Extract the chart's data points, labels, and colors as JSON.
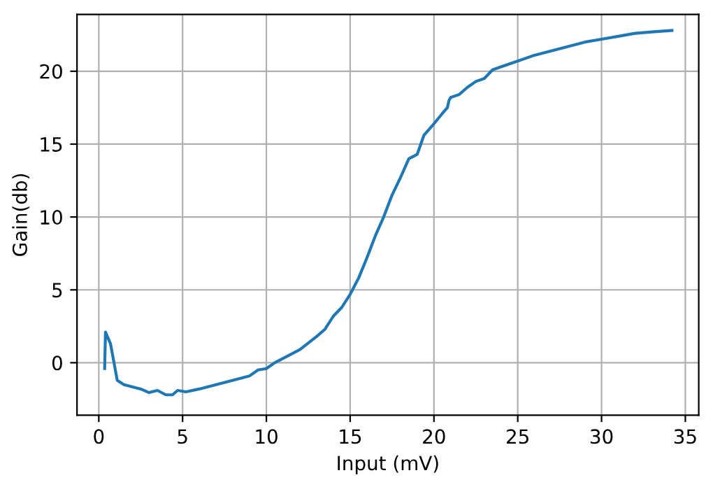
{
  "chart_data": {
    "type": "line",
    "xlabel": "Input (mV)",
    "ylabel": "Gain(db)",
    "xlim": [
      -1.3,
      35.8
    ],
    "ylim": [
      -3.6,
      23.9
    ],
    "xticks": [
      0,
      5,
      10,
      15,
      20,
      25,
      30,
      35
    ],
    "yticks": [
      0,
      5,
      10,
      15,
      20
    ],
    "grid": true,
    "legend": false,
    "series": [
      {
        "color": "#1f77b4",
        "x": [
          0.35,
          0.4,
          0.7,
          1.1,
          1.5,
          2.5,
          3,
          3.5,
          4,
          4.4,
          4.7,
          5.2,
          6,
          7,
          8,
          9,
          9.5,
          10,
          10.5,
          11,
          12,
          13,
          13.5,
          14,
          14.5,
          15,
          15.5,
          16,
          16.5,
          17,
          17.5,
          18,
          18.5,
          19.0,
          19.4,
          20,
          20.5,
          20.8,
          20.9,
          21.0,
          21.5,
          22,
          22.5,
          23,
          23.5,
          24,
          25,
          26,
          27,
          28,
          29,
          30,
          31,
          32,
          33,
          34.2
        ],
        "values": [
          -0.4,
          2.1,
          1.3,
          -1.2,
          -1.5,
          -1.8,
          -2.05,
          -1.9,
          -2.2,
          -2.2,
          -1.9,
          -2.0,
          -1.8,
          -1.5,
          -1.2,
          -0.9,
          -0.5,
          -0.4,
          0.0,
          0.3,
          0.9,
          1.8,
          2.3,
          3.2,
          3.8,
          4.7,
          5.8,
          7.2,
          8.7,
          10.0,
          11.5,
          12.7,
          14.0,
          14.3,
          15.6,
          16.4,
          17.1,
          17.5,
          18.0,
          18.2,
          18.4,
          18.9,
          19.3,
          19.5,
          20.1,
          20.3,
          20.7,
          21.1,
          21.4,
          21.7,
          22.0,
          22.2,
          22.4,
          22.6,
          22.7,
          22.8
        ]
      }
    ]
  }
}
